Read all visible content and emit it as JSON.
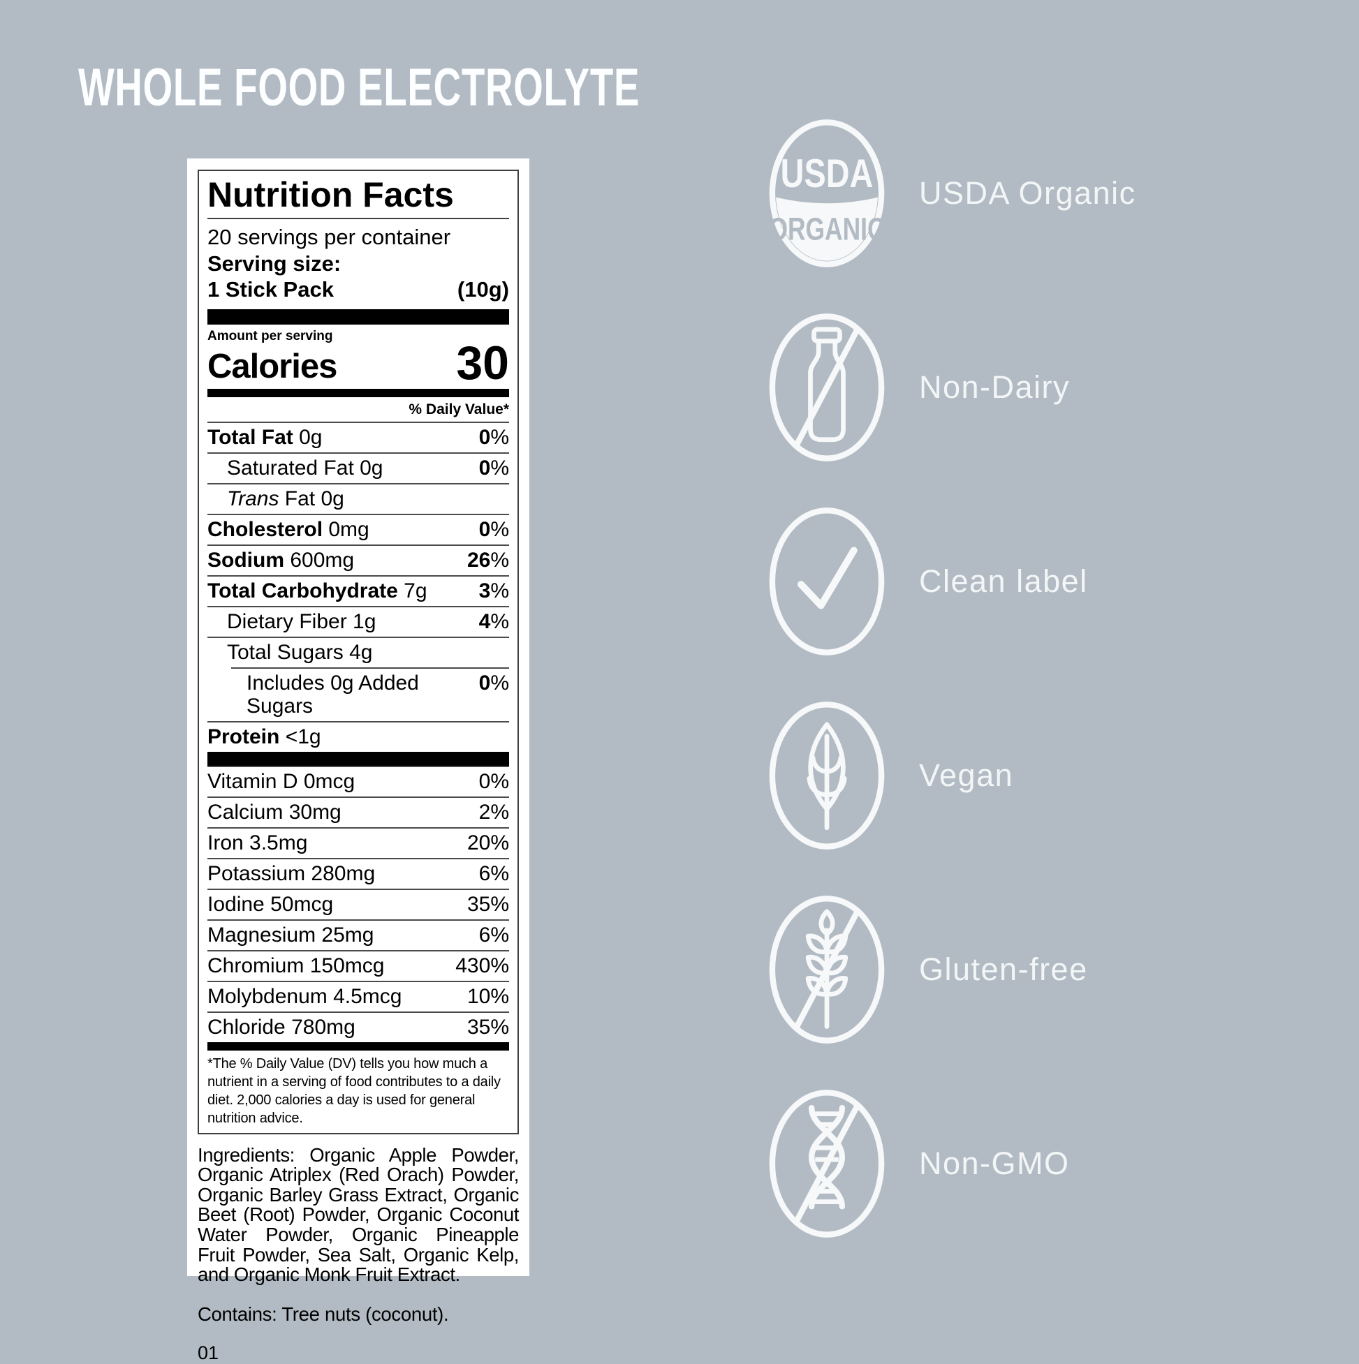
{
  "page": {
    "title": "WHOLE FOOD ELECTROLYTE"
  },
  "colors": {
    "background": "#b2bbc3",
    "card": "#ffffff",
    "label_text": "#000000",
    "badge_white": "#f6f8f9"
  },
  "label": {
    "title": "Nutrition Facts",
    "servings_per_container": "20 servings per container",
    "serving_size_label": "Serving size:",
    "serving_size_name": "1 Stick Pack",
    "serving_size_weight": "(10g)",
    "amount_per_serving": "Amount per serving",
    "calories_label": "Calories",
    "calories_value": "30",
    "daily_value_header": "% Daily Value*",
    "percent_sign": "%",
    "main_rows": [
      {
        "name": "Total Fat",
        "bold": true,
        "amount": "0g",
        "dv": "0",
        "dv_bold": true,
        "indent": 0
      },
      {
        "name": "Saturated Fat",
        "bold": false,
        "amount": "0g",
        "dv": "0",
        "dv_bold": true,
        "indent": 1
      },
      {
        "name": "Fat",
        "italic_prefix": "Trans",
        "bold": false,
        "amount": "0g",
        "dv": "",
        "indent": 1
      },
      {
        "name": "Cholesterol",
        "bold": true,
        "amount": "0mg",
        "dv": "0",
        "dv_bold": true,
        "indent": 0
      },
      {
        "name": "Sodium",
        "bold": true,
        "amount": "600mg",
        "dv": "26",
        "dv_bold": true,
        "indent": 0
      },
      {
        "name": "Total Carbohydrate",
        "bold": true,
        "amount": "7g",
        "dv": "3",
        "dv_bold": true,
        "indent": 0
      },
      {
        "name": "Dietary Fiber",
        "bold": false,
        "amount": "1g",
        "dv": "4",
        "dv_bold": true,
        "indent": 1
      },
      {
        "name": "Total Sugars",
        "bold": false,
        "amount": "4g",
        "dv": "",
        "indent": 1
      },
      {
        "name": "Includes 0g Added Sugars",
        "bold": false,
        "amount": "",
        "dv": "0",
        "dv_bold": true,
        "indent": 2,
        "inset_rule": true
      },
      {
        "name": "Protein",
        "bold": true,
        "amount": "<1g",
        "dv": "",
        "indent": 0
      }
    ],
    "micro_rows": [
      {
        "name": "Vitamin D",
        "amount": "0mcg",
        "dv": "0"
      },
      {
        "name": "Calcium",
        "amount": "30mg",
        "dv": "2"
      },
      {
        "name": "Iron",
        "amount": "3.5mg",
        "dv": "20"
      },
      {
        "name": "Potassium",
        "amount": "280mg",
        "dv": "6"
      },
      {
        "name": "Iodine",
        "amount": "50mcg",
        "dv": "35"
      },
      {
        "name": "Magnesium",
        "amount": "25mg",
        "dv": "6"
      },
      {
        "name": "Chromium",
        "amount": "150mcg",
        "dv": "430"
      },
      {
        "name": "Molybdenum",
        "amount": "4.5mcg",
        "dv": "10"
      },
      {
        "name": "Chloride",
        "amount": "780mg",
        "dv": "35"
      }
    ],
    "footnote": "*The % Daily Value (DV) tells you how much a nutrient in a serving of food contributes to a daily diet. 2,000 calories a day is used for general nutrition advice.",
    "ingredients": "Ingredients: Organic Apple Powder, Organic Atriplex (Red Orach) Powder, Organic Barley Grass Extract, Organic Beet (Root) Powder, Organic Coconut Water Powder, Organic Pineapple Fruit Powder, Sea Salt, Organic Kelp, and Organic Monk Fruit Extract.",
    "contains": "Contains: Tree nuts (coconut).",
    "code": "01"
  },
  "badges": [
    {
      "id": "usda-organic",
      "label": "USDA Organic",
      "icon": "usda-organic-seal-icon",
      "seal_top": "USDA",
      "seal_bottom": "ORGANIC"
    },
    {
      "id": "non-dairy",
      "label": "Non-Dairy",
      "icon": "no-milk-bottle-icon"
    },
    {
      "id": "clean-label",
      "label": "Clean label",
      "icon": "checkmark-icon"
    },
    {
      "id": "vegan",
      "label": "Vegan",
      "icon": "leaf-icon"
    },
    {
      "id": "gluten-free",
      "label": "Gluten-free",
      "icon": "no-wheat-icon"
    },
    {
      "id": "non-gmo",
      "label": "Non-GMO",
      "icon": "no-dna-icon"
    }
  ]
}
